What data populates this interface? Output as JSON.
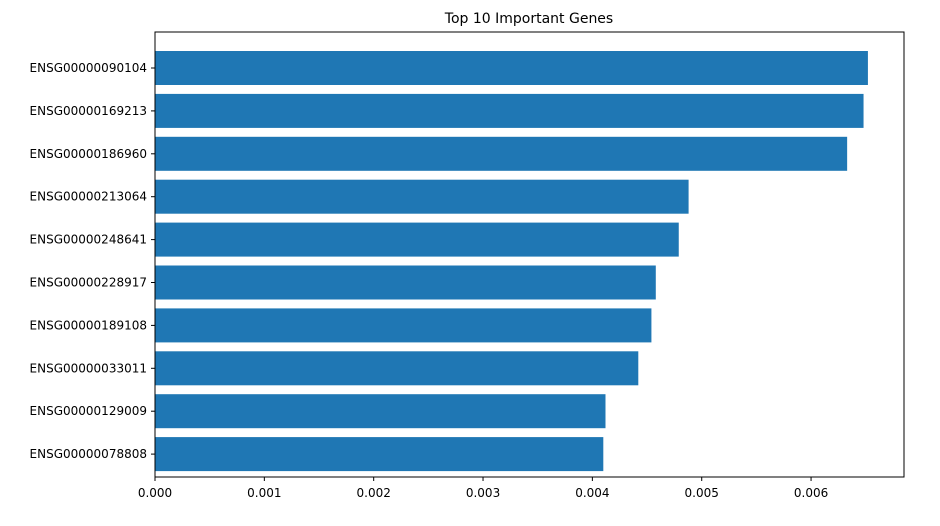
{
  "chart_data": {
    "type": "bar",
    "orientation": "horizontal",
    "title": "Top 10 Important Genes",
    "xlabel": "",
    "ylabel": "",
    "categories": [
      "ENSG00000090104",
      "ENSG00000169213",
      "ENSG00000186960",
      "ENSG00000213064",
      "ENSG00000248641",
      "ENSG00000228917",
      "ENSG00000189108",
      "ENSG00000033011",
      "ENSG00000129009",
      "ENSG00000078808"
    ],
    "values": [
      0.00652,
      0.00648,
      0.00633,
      0.00488,
      0.00479,
      0.00458,
      0.00454,
      0.00442,
      0.00412,
      0.0041
    ],
    "xlim": [
      0,
      0.00685
    ],
    "xticks": [
      0.0,
      0.001,
      0.002,
      0.003,
      0.004,
      0.005,
      0.006
    ],
    "xtick_labels": [
      "0.000",
      "0.001",
      "0.002",
      "0.003",
      "0.004",
      "0.005",
      "0.006"
    ],
    "bar_color": "#1f77b4",
    "grid": false
  }
}
